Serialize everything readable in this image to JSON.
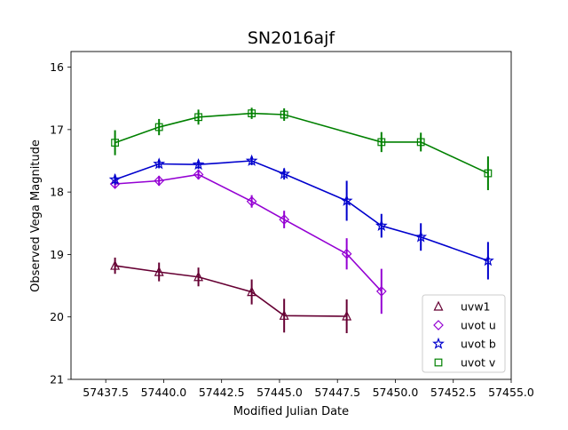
{
  "chart_data": {
    "type": "line",
    "title": "SN2016ajf",
    "xlabel": "Modified Julian Date",
    "ylabel": "Observed Vega Magnitude",
    "xlim": [
      57436.0,
      57455.0
    ],
    "ylim": [
      21,
      15.75
    ],
    "y_inverted": true,
    "x_ticks": [
      57437.5,
      57440.0,
      57442.5,
      57445.0,
      57447.5,
      57450.0,
      57452.5,
      57455.0
    ],
    "x_tick_labels": [
      "57437.5",
      "57440.0",
      "57442.5",
      "57445.0",
      "57447.5",
      "57450.0",
      "57452.5",
      "57455.0"
    ],
    "y_ticks": [
      16,
      17,
      18,
      19,
      20,
      21
    ],
    "y_tick_labels": [
      "16",
      "17",
      "18",
      "19",
      "20",
      "21"
    ],
    "grid": false,
    "legend_position": "lower-right",
    "series": [
      {
        "name": "uvw1",
        "color": "#660033",
        "marker": "triangle",
        "x": [
          57437.9,
          57439.8,
          57441.5,
          57443.8,
          57445.2,
          57447.9
        ],
        "y": [
          19.18,
          19.28,
          19.36,
          19.6,
          19.98,
          19.99
        ],
        "err": [
          0.13,
          0.15,
          0.15,
          0.2,
          0.27,
          0.27
        ]
      },
      {
        "name": "uvot u",
        "color": "#9400d3",
        "marker": "diamond",
        "x": [
          57437.9,
          57439.8,
          57441.5,
          57443.8,
          57445.2,
          57447.9,
          57449.4
        ],
        "y": [
          17.87,
          17.82,
          17.72,
          18.15,
          18.44,
          18.99,
          19.59
        ],
        "err": [
          0.07,
          0.08,
          0.08,
          0.1,
          0.14,
          0.25,
          0.36
        ]
      },
      {
        "name": "uvot b",
        "color": "#0000cd",
        "marker": "star",
        "x": [
          57437.9,
          57439.8,
          57441.5,
          57443.8,
          57445.2,
          57447.9,
          57449.4,
          57451.1,
          57454.0
        ],
        "y": [
          17.8,
          17.55,
          17.56,
          17.5,
          17.71,
          18.14,
          18.54,
          18.72,
          19.1
        ],
        "err": [
          0.08,
          0.07,
          0.07,
          0.07,
          0.09,
          0.32,
          0.19,
          0.22,
          0.3
        ]
      },
      {
        "name": "uvot v",
        "color": "#008000",
        "marker": "square",
        "x": [
          57437.9,
          57439.8,
          57441.5,
          57443.8,
          57445.2,
          57449.4,
          57451.1,
          57454.0
        ],
        "y": [
          17.21,
          16.96,
          16.8,
          16.74,
          16.76,
          17.2,
          17.2,
          17.7
        ],
        "err": [
          0.2,
          0.13,
          0.12,
          0.09,
          0.1,
          0.16,
          0.15,
          0.27
        ]
      }
    ]
  }
}
